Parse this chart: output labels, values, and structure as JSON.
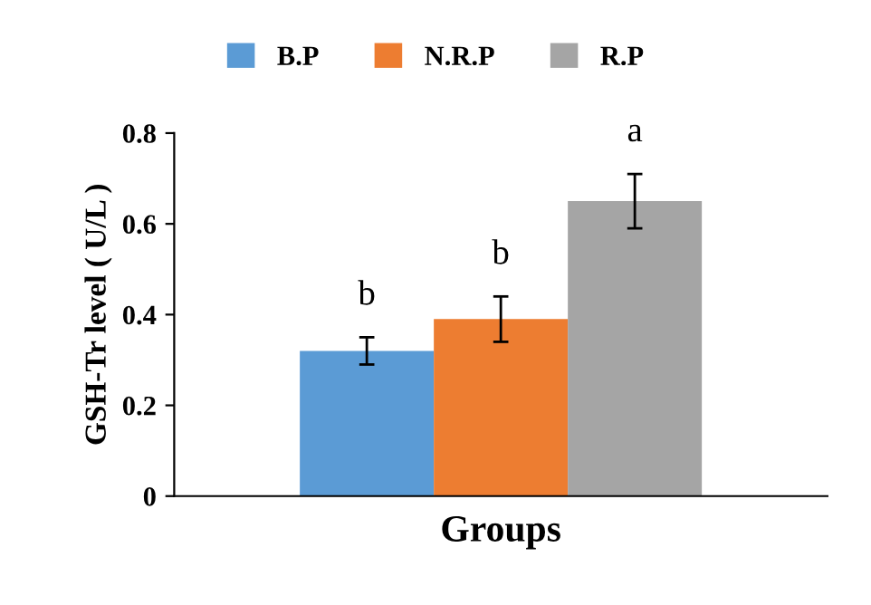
{
  "chart_data": {
    "type": "bar",
    "ylabel": "GSH-Tr level ( U/L )",
    "xlabel": "Groups",
    "categories": [
      null
    ],
    "series": [
      {
        "name": "B.P",
        "color": "#5b9bd5",
        "values": [
          0.32
        ],
        "errors": [
          0.03
        ]
      },
      {
        "name": "N.R.P",
        "color": "#ed7d31",
        "values": [
          0.39
        ],
        "errors": [
          0.05
        ]
      },
      {
        "name": "R.P",
        "color": "#a5a5a5",
        "values": [
          0.65
        ],
        "errors": [
          0.06
        ]
      }
    ],
    "annotations": [
      "b",
      "b",
      "a"
    ],
    "ylim": [
      0,
      0.8
    ],
    "yticks": [
      0,
      0.2,
      0.4,
      0.6,
      0.8
    ],
    "grid": false,
    "legend": "top"
  }
}
